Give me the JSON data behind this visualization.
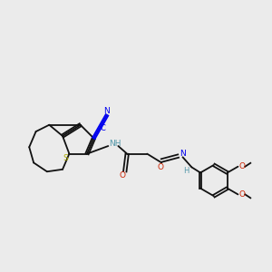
{
  "bg_color": "#ebebeb",
  "line_color": "#111111",
  "figsize": [
    3.0,
    3.0
  ],
  "dpi": 100,
  "xlim": [
    0,
    12
  ],
  "ylim": [
    2,
    10
  ],
  "S_color": "#aaaa00",
  "N_color": "#0000ee",
  "NH_color": "#5599aa",
  "O_color": "#cc2200",
  "H_color": "#5599aa"
}
